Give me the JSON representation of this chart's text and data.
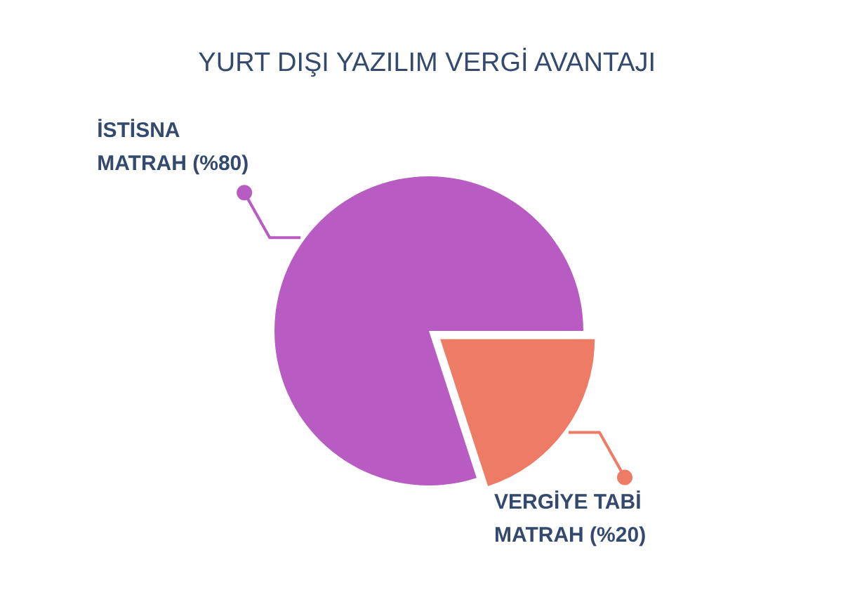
{
  "chart_data": {
    "type": "pie",
    "title": "YURT DIŞI YAZILIM VERGİ AVANTAJI",
    "categories": [
      "İSTİSNA\nMATRAH (%80)",
      "VERGİYE TABİ\nMATRAH (%20)"
    ],
    "values": [
      80,
      20
    ],
    "colors": [
      "#b85cc4",
      "#ee7b66"
    ]
  }
}
